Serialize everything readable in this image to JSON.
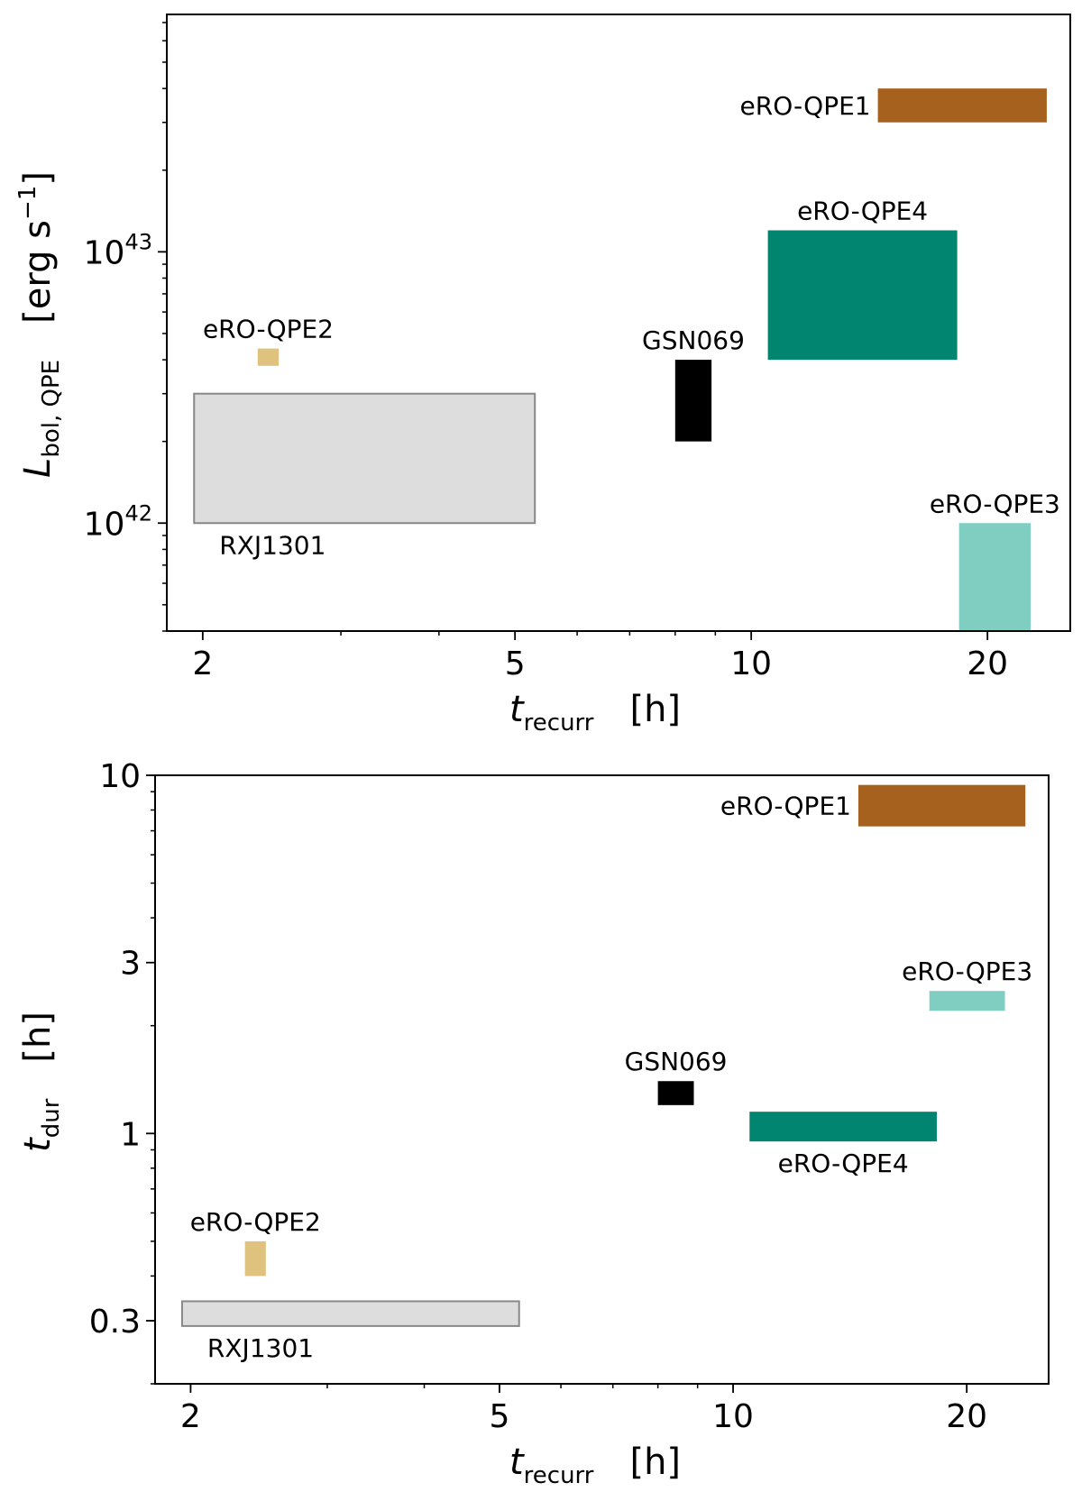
{
  "chart_data": [
    {
      "type": "box",
      "xlabel": {
        "base": "t",
        "sub": "recurr",
        "unit": "[h]"
      },
      "ylabel": {
        "base": "L",
        "sub": "bol, QPE",
        "unit": "[erg s",
        "unit_sup": "−1",
        "unit_end": "]"
      },
      "xscale": "log",
      "yscale": "log",
      "xlim": [
        1.8,
        25.5
      ],
      "ylim": [
        4e+41,
        7.5e+43
      ],
      "x_ticks": [
        {
          "value": 2,
          "label": "2"
        },
        {
          "value": 5,
          "label": "5"
        },
        {
          "value": 10,
          "label": "10"
        },
        {
          "value": 20,
          "label": "20"
        }
      ],
      "y_ticks": [
        {
          "value": 1e+42,
          "base": "10",
          "exp": "42"
        },
        {
          "value": 1e+43,
          "base": "10",
          "exp": "43"
        }
      ],
      "boxes": [
        {
          "name": "eRO-QPE1",
          "x": [
            14.5,
            23.8
          ],
          "y": [
            3e+43,
            4e+43
          ],
          "color": "#a6611e",
          "outline": false,
          "label_pos": "left"
        },
        {
          "name": "eRO-QPE4",
          "x": [
            10.5,
            18.3
          ],
          "y": [
            4e+42,
            1.2e+43
          ],
          "color": "#018571",
          "outline": false,
          "label_pos": "top"
        },
        {
          "name": "eRO-QPE2",
          "x": [
            2.35,
            2.5
          ],
          "y": [
            3.8e+42,
            4.4e+42
          ],
          "color": "#dfc27d",
          "outline": false,
          "label_pos": "top"
        },
        {
          "name": "GSN069",
          "x": [
            8.0,
            8.9
          ],
          "y": [
            2e+42,
            4e+42
          ],
          "color": "#000000",
          "outline": false,
          "label_pos": "top"
        },
        {
          "name": "RXJ1301",
          "x": [
            1.95,
            5.3
          ],
          "y": [
            1e+42,
            3e+42
          ],
          "color": "#dddddd",
          "outline": true,
          "label_pos": "below"
        },
        {
          "name": "eRO-QPE3",
          "x": [
            18.4,
            22.7
          ],
          "y": [
            4e+41,
            1e+42
          ],
          "color": "#80cdc1",
          "outline": false,
          "label_pos": "top"
        }
      ]
    },
    {
      "type": "box",
      "xlabel": {
        "base": "t",
        "sub": "recurr",
        "unit": "[h]"
      },
      "ylabel": {
        "base": "t",
        "sub": "dur",
        "unit": "[h]"
      },
      "xscale": "log",
      "yscale": "log",
      "xlim": [
        1.8,
        25.5
      ],
      "ylim": [
        0.2,
        10
      ],
      "x_ticks": [
        {
          "value": 2,
          "label": "2"
        },
        {
          "value": 5,
          "label": "5"
        },
        {
          "value": 10,
          "label": "10"
        },
        {
          "value": 20,
          "label": "20"
        }
      ],
      "y_ticks": [
        {
          "value": 0.3,
          "label": "0.3"
        },
        {
          "value": 1,
          "label": "1"
        },
        {
          "value": 3,
          "label": "3"
        },
        {
          "value": 10,
          "label": "10"
        }
      ],
      "boxes": [
        {
          "name": "eRO-QPE1",
          "x": [
            14.5,
            23.8
          ],
          "y": [
            7.2,
            9.4
          ],
          "color": "#a6611e",
          "outline": false,
          "label_pos": "left"
        },
        {
          "name": "eRO-QPE3",
          "x": [
            17.9,
            22.4
          ],
          "y": [
            2.2,
            2.5
          ],
          "color": "#80cdc1",
          "outline": false,
          "label_pos": "top"
        },
        {
          "name": "GSN069",
          "x": [
            8.0,
            8.9
          ],
          "y": [
            1.2,
            1.4
          ],
          "color": "#000000",
          "outline": false,
          "label_pos": "top"
        },
        {
          "name": "eRO-QPE4",
          "x": [
            10.5,
            18.3
          ],
          "y": [
            0.95,
            1.15
          ],
          "color": "#018571",
          "outline": false,
          "label_pos": "below"
        },
        {
          "name": "eRO-QPE2",
          "x": [
            2.35,
            2.5
          ],
          "y": [
            0.4,
            0.5
          ],
          "color": "#dfc27d",
          "outline": false,
          "label_pos": "top"
        },
        {
          "name": "RXJ1301",
          "x": [
            1.95,
            5.3
          ],
          "y": [
            0.29,
            0.34
          ],
          "color": "#dddddd",
          "outline": true,
          "label_pos": "below"
        }
      ]
    }
  ]
}
